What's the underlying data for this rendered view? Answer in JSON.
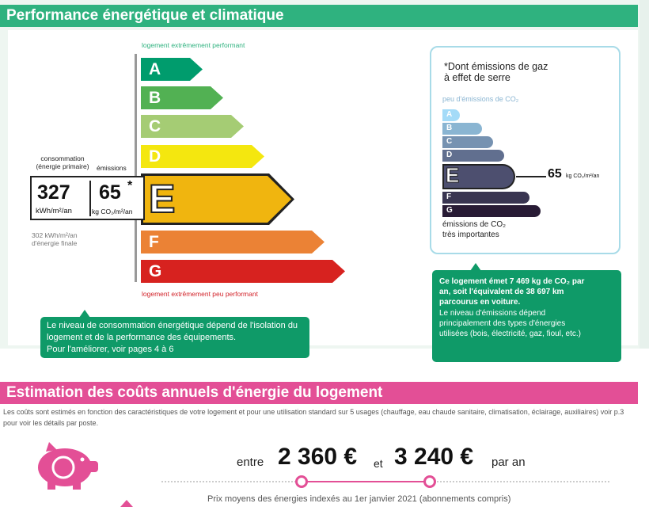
{
  "performance": {
    "title": "Performance énergétique et climatique",
    "top_label": "logement extrêmement performant",
    "bottom_label": "logement extrêmement peu performant",
    "classes": [
      "A",
      "B",
      "C",
      "D",
      "E",
      "F",
      "G"
    ],
    "class_colors": [
      "#009c6d",
      "#52b153",
      "#a5cc74",
      "#f4e70f",
      "#f0b50f",
      "#eb8235",
      "#d7221f"
    ],
    "current_class": "E",
    "consumption_label": "consommation\n(énergie primaire)",
    "emissions_label": "émissions",
    "consumption_value": "327",
    "consumption_unit": "kWh/m²/an",
    "emissions_value": "65",
    "emissions_star": "*",
    "emissions_unit": "kg CO₂/m²/an",
    "final_energy_line1": "302 kWh/m²/an",
    "final_energy_line2": "d'énergie finale",
    "bubble": {
      "line1": "Le niveau de consommation énergétique dépend de l'isolation du",
      "line2": "logement et de la performance des équipements.",
      "line3": "Pour l'améliorer, voir pages 4 à 6"
    }
  },
  "ges": {
    "note_line1": "*Dont émissions de gaz",
    "note_line2": "à effet de serre",
    "top_label": "peu d'émissions de CO₂",
    "bottom_line1": "émissions de CO₂",
    "bottom_line2": "très importantes",
    "classes": [
      "A",
      "B",
      "C",
      "D",
      "E",
      "F",
      "G"
    ],
    "class_colors": [
      "#a4dbf8",
      "#8ab5d2",
      "#7692b1",
      "#616f8f",
      "#4d4f6f",
      "#393551",
      "#281b35"
    ],
    "current_class": "E",
    "value": "65",
    "unit": "kg CO₂/m²/an",
    "bubble": {
      "line1": "Ce logement émet 7 469 kg de CO₂ par",
      "line2": "an, soit l'équivalent de 38 697 km",
      "line3": "parcourus en voiture.",
      "line4": "Le niveau d'émissions dépend",
      "line5": "principalement des types d'énergies",
      "line6": "utilisées (bois, électricité, gaz, fioul, etc.)"
    }
  },
  "costs": {
    "title": "Estimation des coûts annuels d'énergie du logement",
    "description": "Les coûts sont estimés en fonction des caractéristiques de votre logement et pour une utilisation standard sur 5 usages (chauffage, eau chaude sanitaire, climatisation, éclairage, auxiliaires) voir p.3 pour voir les détails par poste.",
    "between": "entre",
    "low": "2 360 €",
    "and": "et",
    "high": "3 240 €",
    "per_year": "par an",
    "prices_note": "Prix moyens des énergies indexés au  1er janvier 2021 (abonnements compris)",
    "euro_symbol": "€",
    "accent": "#e34f96"
  }
}
